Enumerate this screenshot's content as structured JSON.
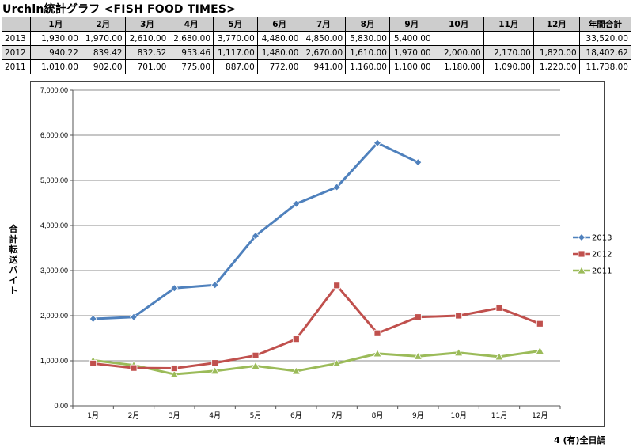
{
  "title": "Urchin統計グラフ",
  "subtitle": "<FISH FOOD TIMES>",
  "table": {
    "headers": [
      "",
      "1月",
      "2月",
      "3月",
      "4月",
      "5月",
      "6月",
      "7月",
      "8月",
      "9月",
      "10月",
      "11月",
      "12月",
      "年間合計"
    ],
    "rows": [
      {
        "year": "2013",
        "cells": [
          "1,930.00",
          "1,970.00",
          "2,610.00",
          "2,680.00",
          "3,770.00",
          "4,480.00",
          "4,850.00",
          "5,830.00",
          "5,400.00",
          "",
          "",
          "",
          "33,520.00"
        ]
      },
      {
        "year": "2012",
        "cells": [
          "940.22",
          "839.42",
          "832.52",
          "953.46",
          "1,117.00",
          "1,480.00",
          "2,670.00",
          "1,610.00",
          "1,970.00",
          "2,000.00",
          "2,170.00",
          "1,820.00",
          "18,402.62"
        ]
      },
      {
        "year": "2011",
        "cells": [
          "1,010.00",
          "902.00",
          "701.00",
          "775.00",
          "887.00",
          "772.00",
          "941.00",
          "1,160.00",
          "1,100.00",
          "1,180.00",
          "1,090.00",
          "1,220.00",
          "11,738.00"
        ]
      }
    ]
  },
  "footer": "4 (有)全日調",
  "chart_data": {
    "type": "line",
    "title": "",
    "xlabel": "",
    "ylabel": "合計転送バイト",
    "categories": [
      "1月",
      "2月",
      "3月",
      "4月",
      "5月",
      "6月",
      "7月",
      "8月",
      "9月",
      "10月",
      "11月",
      "12月"
    ],
    "yticks": [
      "0.00",
      "1,000.00",
      "2,000.00",
      "3,000.00",
      "4,000.00",
      "5,000.00",
      "6,000.00",
      "7,000.00"
    ],
    "ylim": [
      0,
      7000
    ],
    "grid": true,
    "legend_position": "right",
    "series": [
      {
        "name": "2013",
        "color": "#4f81bd",
        "marker": "diamond",
        "values": [
          1930,
          1970,
          2610,
          2680,
          3770,
          4480,
          4850,
          5830,
          5400,
          null,
          null,
          null
        ]
      },
      {
        "name": "2012",
        "color": "#c0504d",
        "marker": "square",
        "values": [
          940.22,
          839.42,
          832.52,
          953.46,
          1117,
          1480,
          2670,
          1610,
          1970,
          2000,
          2170,
          1820
        ]
      },
      {
        "name": "2011",
        "color": "#9bbb59",
        "marker": "triangle",
        "values": [
          1010,
          902,
          701,
          775,
          887,
          772,
          941,
          1160,
          1100,
          1180,
          1090,
          1220
        ]
      }
    ]
  }
}
